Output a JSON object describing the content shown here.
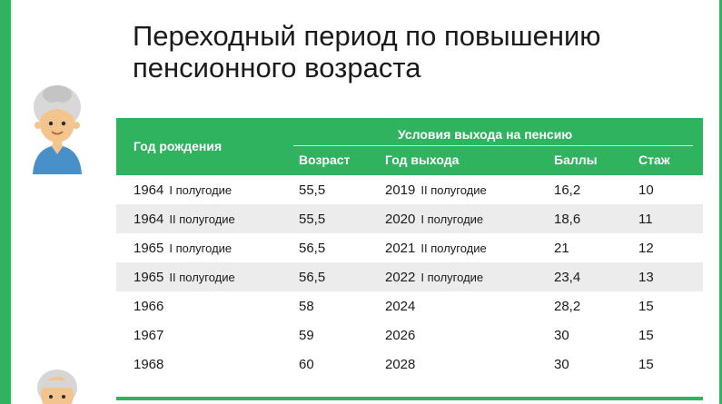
{
  "title": "Переходный период по повышению пенсионного возраста",
  "colors": {
    "accent": "#2fb35f",
    "row_shade": "#ececec"
  },
  "table": {
    "header": {
      "birth_year": "Год рождения",
      "conditions": "Условия выхода на пенсию",
      "age": "Возраст",
      "exit_year": "Год выхода",
      "points": "Баллы",
      "experience": "Стаж"
    },
    "rows": [
      {
        "year": "1964",
        "half": "I полугодие",
        "age": "55,5",
        "exit_year": "2019",
        "exit_half": "II полугодие",
        "points": "16,2",
        "experience": "10"
      },
      {
        "year": "1964",
        "half": "II полугодие",
        "age": "55,5",
        "exit_year": "2020",
        "exit_half": "I полугодие",
        "points": "18,6",
        "experience": "11"
      },
      {
        "year": "1965",
        "half": "I полугодие",
        "age": "56,5",
        "exit_year": "2021",
        "exit_half": "II полугодие",
        "points": "21",
        "experience": "12"
      },
      {
        "year": "1965",
        "half": "II полугодие",
        "age": "56,5",
        "exit_year": "2022",
        "exit_half": "I полугодие",
        "points": "23,4",
        "experience": "13"
      },
      {
        "year": "1966",
        "half": "",
        "age": "58",
        "exit_year": "2024",
        "exit_half": "",
        "points": "28,2",
        "experience": "15"
      },
      {
        "year": "1967",
        "half": "",
        "age": "59",
        "exit_year": "2026",
        "exit_half": "",
        "points": "30",
        "experience": "15"
      },
      {
        "year": "1968",
        "half": "",
        "age": "60",
        "exit_year": "2028",
        "exit_half": "",
        "points": "30",
        "experience": "15"
      }
    ]
  },
  "icons": {
    "avatar_top": "grandmother-icon",
    "avatar_bottom": "grandfather-icon"
  }
}
